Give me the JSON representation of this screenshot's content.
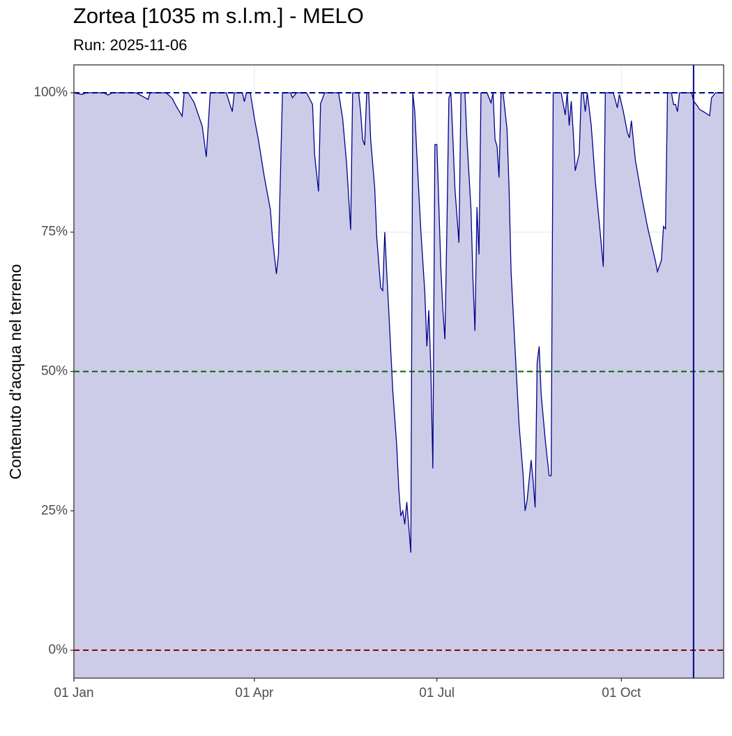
{
  "chart_data": {
    "type": "area-line",
    "title": "Zortea [1035 m s.l.m.] - MELO",
    "subtitle": "Run: 2025-11-06",
    "y_label": "Contenuto d'acqua nel terreno",
    "x": [
      0,
      4,
      6,
      15,
      17,
      19,
      31,
      34,
      37,
      38,
      46,
      49,
      51,
      54,
      55,
      57,
      60,
      64,
      66,
      68,
      76,
      79,
      80,
      84,
      85,
      86,
      88,
      90,
      92,
      95,
      98,
      99,
      101,
      102,
      104,
      108,
      109,
      111,
      116,
      119,
      120,
      122,
      123,
      125,
      132,
      134,
      136,
      138,
      139,
      142,
      143,
      144,
      145,
      146,
      147,
      148,
      150,
      151,
      153,
      154,
      155,
      156,
      157,
      159,
      161,
      162,
      163,
      164,
      165,
      166,
      168,
      169,
      170,
      171,
      173,
      175,
      176,
      177,
      178,
      179,
      180,
      181,
      183,
      184,
      185,
      186,
      187,
      188,
      189,
      190,
      192,
      193,
      195,
      196,
      198,
      199,
      200,
      201,
      202,
      203,
      206,
      208,
      209,
      210,
      211,
      212,
      213,
      214,
      216,
      217,
      218,
      220,
      222,
      224,
      225,
      226,
      228,
      229,
      230,
      231,
      232,
      233,
      235,
      237,
      238,
      239,
      243,
      245,
      246,
      247,
      248,
      249,
      250,
      252,
      253,
      254,
      255,
      256,
      258,
      260,
      262,
      264,
      265,
      269,
      271,
      272,
      274,
      276,
      277,
      278,
      280,
      283,
      286,
      288,
      290,
      291,
      293,
      294,
      295,
      296,
      298,
      299,
      300,
      301,
      302,
      308,
      309,
      311,
      312,
      314,
      317,
      318,
      320,
      324
    ],
    "series": [
      {
        "name": "Contenuto d'acqua",
        "color": "#00008b",
        "fill": "#cccce8",
        "values": [
          100,
          99.7,
          100,
          100,
          99.6,
          100,
          100,
          99.4,
          98.8,
          100,
          100,
          99,
          97.6,
          95.8,
          100,
          100,
          98.2,
          94,
          88.5,
          100,
          100,
          96.6,
          100,
          100,
          98.4,
          100,
          100,
          95.4,
          91.6,
          84.8,
          79,
          74,
          67.5,
          71,
          100,
          100,
          99.1,
          100,
          100,
          97.9,
          89,
          82.3,
          98,
          100,
          100,
          95.4,
          87.3,
          75.4,
          100,
          100,
          96.6,
          91.6,
          90.6,
          100,
          100,
          91.6,
          82.9,
          74.1,
          65,
          64.5,
          75,
          67.9,
          61,
          46.6,
          36.6,
          29,
          24.1,
          25,
          22.6,
          26.6,
          17.5,
          100,
          96.6,
          89,
          75.4,
          64.1,
          54.5,
          61,
          50.4,
          32.6,
          90.7,
          90.7,
          68.5,
          61,
          55.8,
          75.4,
          99.1,
          100,
          91.6,
          82.9,
          73.1,
          100,
          100,
          91.6,
          79.1,
          66.6,
          57.3,
          79.5,
          71,
          100,
          100,
          98.2,
          100,
          91.6,
          90.4,
          84.8,
          100,
          100,
          93.5,
          82.9,
          67.9,
          54.1,
          40.4,
          31.6,
          25,
          26.9,
          34.1,
          30.4,
          25.6,
          51.6,
          54.5,
          46,
          37.9,
          31.3,
          31.3,
          100,
          100,
          96,
          100,
          94.1,
          98.5,
          92.9,
          86,
          89.1,
          100,
          100,
          96.6,
          100,
          94.1,
          84.1,
          76.6,
          68.8,
          100,
          100,
          97.3,
          99.7,
          96.6,
          92.9,
          91.9,
          95,
          87.9,
          81.6,
          76,
          72.9,
          69.8,
          67.9,
          70,
          76,
          75.6,
          100,
          100,
          97.9,
          97.9,
          96.6,
          100,
          100,
          98.5,
          97.6,
          97,
          96.6,
          95.9,
          99.1,
          100,
          100
        ]
      }
    ],
    "hlines": [
      {
        "value": 100,
        "color": "#00008b"
      },
      {
        "value": 50,
        "color": "#006400"
      },
      {
        "value": 0,
        "color": "#8b0000"
      }
    ],
    "vline": {
      "value": 309,
      "color": "#00008b"
    },
    "xlim": [
      0,
      324
    ],
    "xticks": [
      {
        "value": 0,
        "label": "01 Jan"
      },
      {
        "value": 90,
        "label": "01 Apr"
      },
      {
        "value": 181,
        "label": "01 Jul"
      },
      {
        "value": 273,
        "label": "01 Oct"
      }
    ],
    "ylim": [
      -5,
      105
    ],
    "yticks": [
      {
        "value": 0,
        "label": "0%"
      },
      {
        "value": 25,
        "label": "25%"
      },
      {
        "value": 50,
        "label": "50%"
      },
      {
        "value": 75,
        "label": "75%"
      },
      {
        "value": 100,
        "label": "100%"
      }
    ],
    "grid": true
  }
}
